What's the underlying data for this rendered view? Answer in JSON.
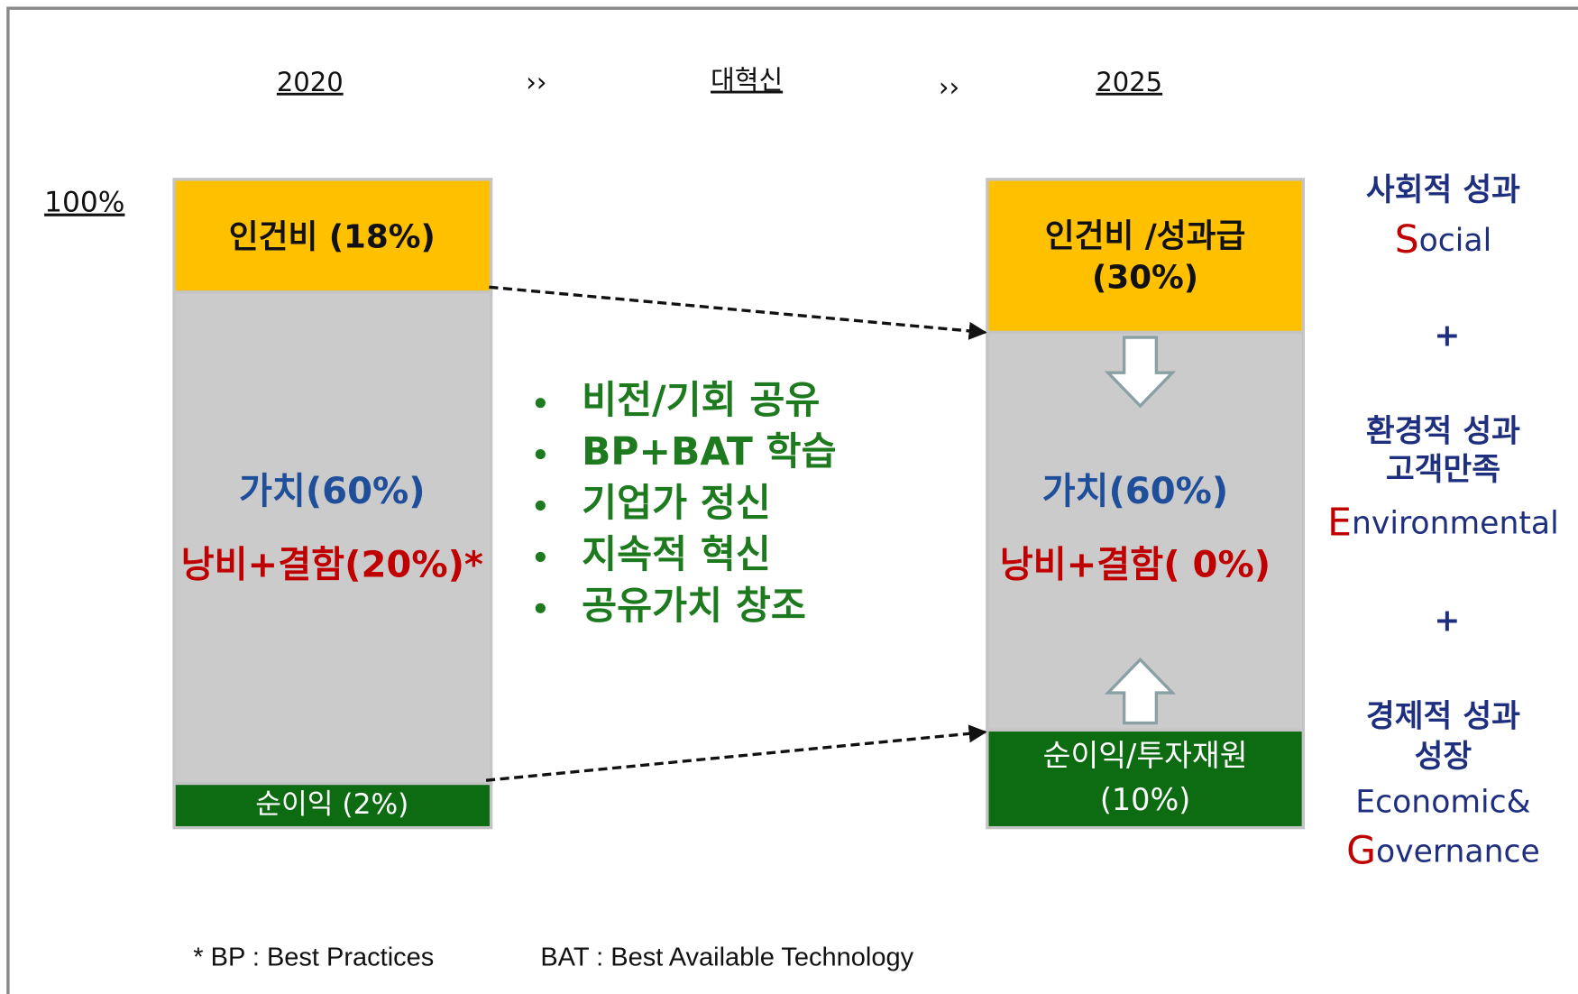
{
  "header": {
    "from": "2020",
    "arrow_1": "››",
    "middle": "대혁신",
    "arrow_2": "››",
    "to": "2025"
  },
  "scale_label": "100%",
  "left_column": {
    "top": "인건비 (18%)",
    "middle": [
      "가치(60%)",
      "낭비+결함(20%)*"
    ],
    "bottom": "순이익 (2%)"
  },
  "bullets": [
    "비전/기회 공유",
    "BP+BAT 학습",
    "기업가 정신",
    "지속적 혁신",
    "공유가치 창조"
  ],
  "right_column": {
    "top": [
      "인건비 /성과급",
      "(30%)"
    ],
    "middle": [
      "가치(60%)",
      "낭비+결함( 0%)"
    ],
    "bottom": [
      "순이익/투자재원",
      "(10%)"
    ]
  },
  "esg": {
    "social": {
      "label": "사회적 성과",
      "initial": "S",
      "rest": "ocial"
    },
    "plus_1": "+",
    "environmental": {
      "labels": [
        "환경적 성과",
        "고객만족"
      ],
      "initial": "E",
      "rest": "nvironmental"
    },
    "plus_2": "+",
    "economic": {
      "labels": [
        "경제적 성과",
        "성장",
        "Economic&"
      ],
      "initial": "G",
      "rest": "overnance"
    }
  },
  "footnote": [
    "* BP : Best Practices",
    "BAT : Best Available Technology"
  ]
}
